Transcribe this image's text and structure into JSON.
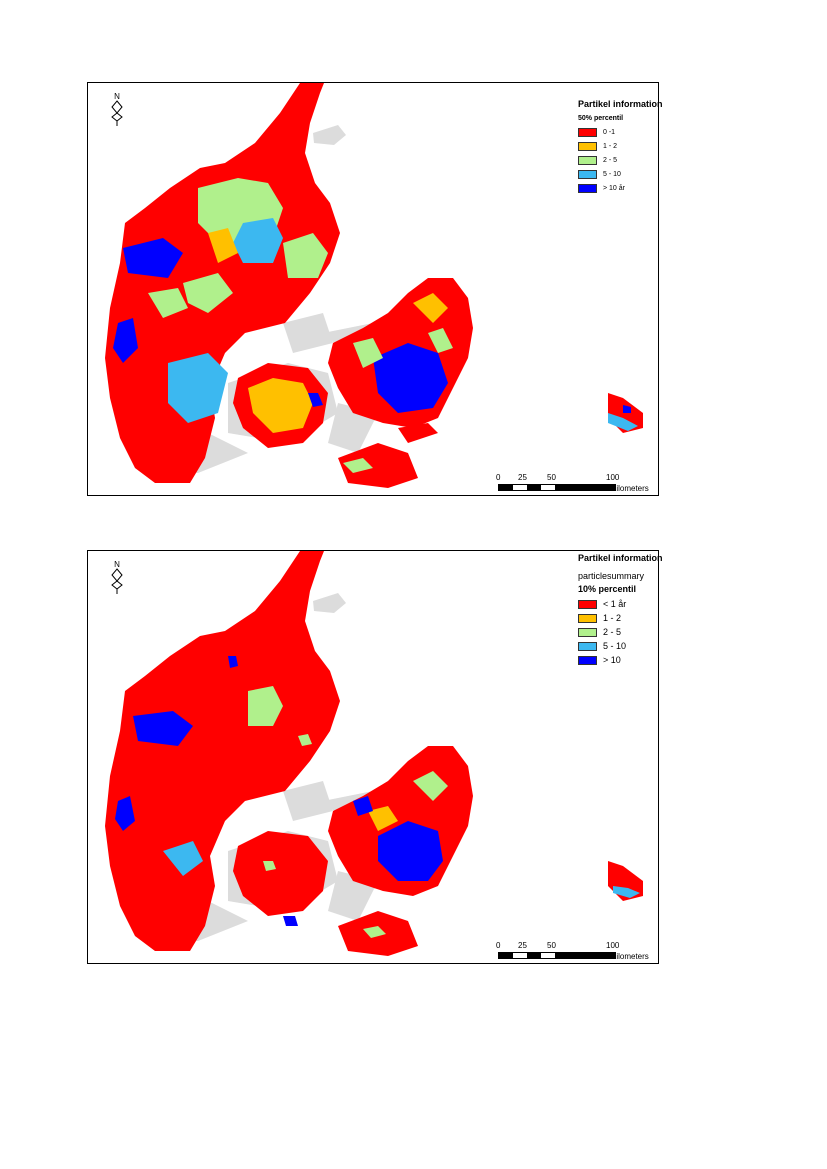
{
  "colors": {
    "red": "#ff0000",
    "orange": "#ffc000",
    "lightgreen": "#b0f08c",
    "lightblue": "#3cb8f0",
    "blue": "#0000ff",
    "land_gray": "#dcdcdc"
  },
  "north_arrow": {
    "letter": "N",
    "icon": "north-arrow-icon"
  },
  "maps": [
    {
      "legend_title": "Partikel information",
      "legend_subtitle": "50% percentil",
      "legend_items": [
        {
          "label": "0 -1",
          "color": "#ff0000"
        },
        {
          "label": "1 - 2",
          "color": "#ffc000"
        },
        {
          "label": "2 - 5",
          "color": "#b0f08c"
        },
        {
          "label": "5 - 10",
          "color": "#3cb8f0"
        },
        {
          "label": "> 10 år",
          "color": "#0000ff"
        }
      ],
      "scale_labels": [
        "0",
        "25",
        "50",
        "100"
      ],
      "scale_unit": "Kilometers"
    },
    {
      "legend_title": "Partikel information",
      "legend_subtitle_1": "particlesummary",
      "legend_subtitle_2": "10% percentil",
      "legend_items": [
        {
          "label": "< 1 år",
          "color": "#ff0000"
        },
        {
          "label": "1 - 2",
          "color": "#ffc000"
        },
        {
          "label": "2 - 5",
          "color": "#b0f08c"
        },
        {
          "label": "5 - 10",
          "color": "#3cb8f0"
        },
        {
          "label": "> 10",
          "color": "#0000ff"
        }
      ],
      "scale_labels": [
        "0",
        "25",
        "50",
        "100"
      ],
      "scale_unit": "Kilometers"
    }
  ]
}
